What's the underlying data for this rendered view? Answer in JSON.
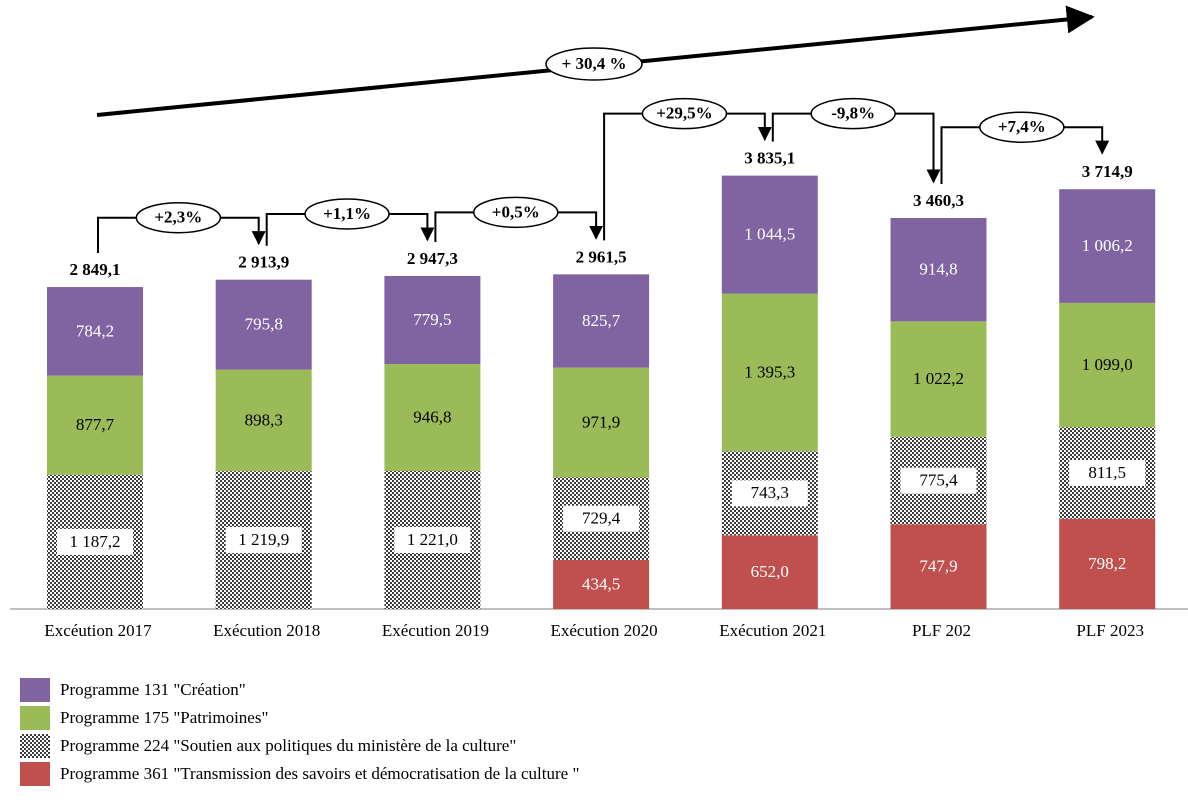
{
  "chart_data": {
    "type": "stacked_bar",
    "categories": [
      "Excéution 2017",
      "Exécution 2018",
      "Exécution 2019",
      "Exécution 2020",
      "Exécution 2021",
      "PLF 202",
      "PLF 2023"
    ],
    "series": [
      {
        "name": "Programme 131 \"Création\"",
        "color": "#8064a2",
        "label_color": "#ffffff",
        "values": [
          784.2,
          795.8,
          779.5,
          825.7,
          1044.5,
          914.8,
          1006.2
        ],
        "value_labels": [
          "784,2",
          "795,8",
          "779,5",
          "825,7",
          "1 044,5",
          "914,8",
          "1 006,2"
        ]
      },
      {
        "name": "Programme 175 \"Patrimoines\"",
        "color": "#9bbb59",
        "label_color": "#000000",
        "values": [
          877.7,
          898.3,
          946.8,
          971.9,
          1395.3,
          1022.2,
          1099.0
        ],
        "value_labels": [
          "877,7",
          "898,3",
          "946,8",
          "971,9",
          "1 395,3",
          "1 022,2",
          "1 099,0"
        ]
      },
      {
        "name": "Programme 224 \"Soutien aux politiques du ministère de la culture\"",
        "color": "#7f7f7f",
        "pattern": "checker",
        "label_color": "#000000",
        "label_box": true,
        "values": [
          1187.2,
          1219.9,
          1221.0,
          729.4,
          743.3,
          775.4,
          811.5
        ],
        "value_labels": [
          "1 187,2",
          "1 219,9",
          "1 221,0",
          "729,4",
          "743,3",
          "775,4",
          "811,5"
        ]
      },
      {
        "name": "Programme 361 \"Transmission des savoirs et démocratisation de la culture \"",
        "color": "#c0504d",
        "label_color": "#ffffff",
        "values": [
          null,
          null,
          null,
          434.5,
          652.0,
          747.9,
          798.2
        ],
        "value_labels": [
          null,
          null,
          null,
          "434,5",
          "652,0",
          "747,9",
          "798,2"
        ]
      }
    ],
    "totals": [
      2849.1,
      2913.9,
      2947.3,
      2961.5,
      3835.1,
      3460.3,
      3714.9
    ],
    "total_labels": [
      "2 849,1",
      "2 913,9",
      "2 947,3",
      "2 961,5",
      "3 835,1",
      "3 460,3",
      "3 714,9"
    ],
    "changes": [
      "+2,3%",
      "+1,1%",
      "+0,5%",
      "+29,5%",
      "-9,8%",
      "+7,4%"
    ],
    "overall_change": "+ 30,4 %"
  }
}
